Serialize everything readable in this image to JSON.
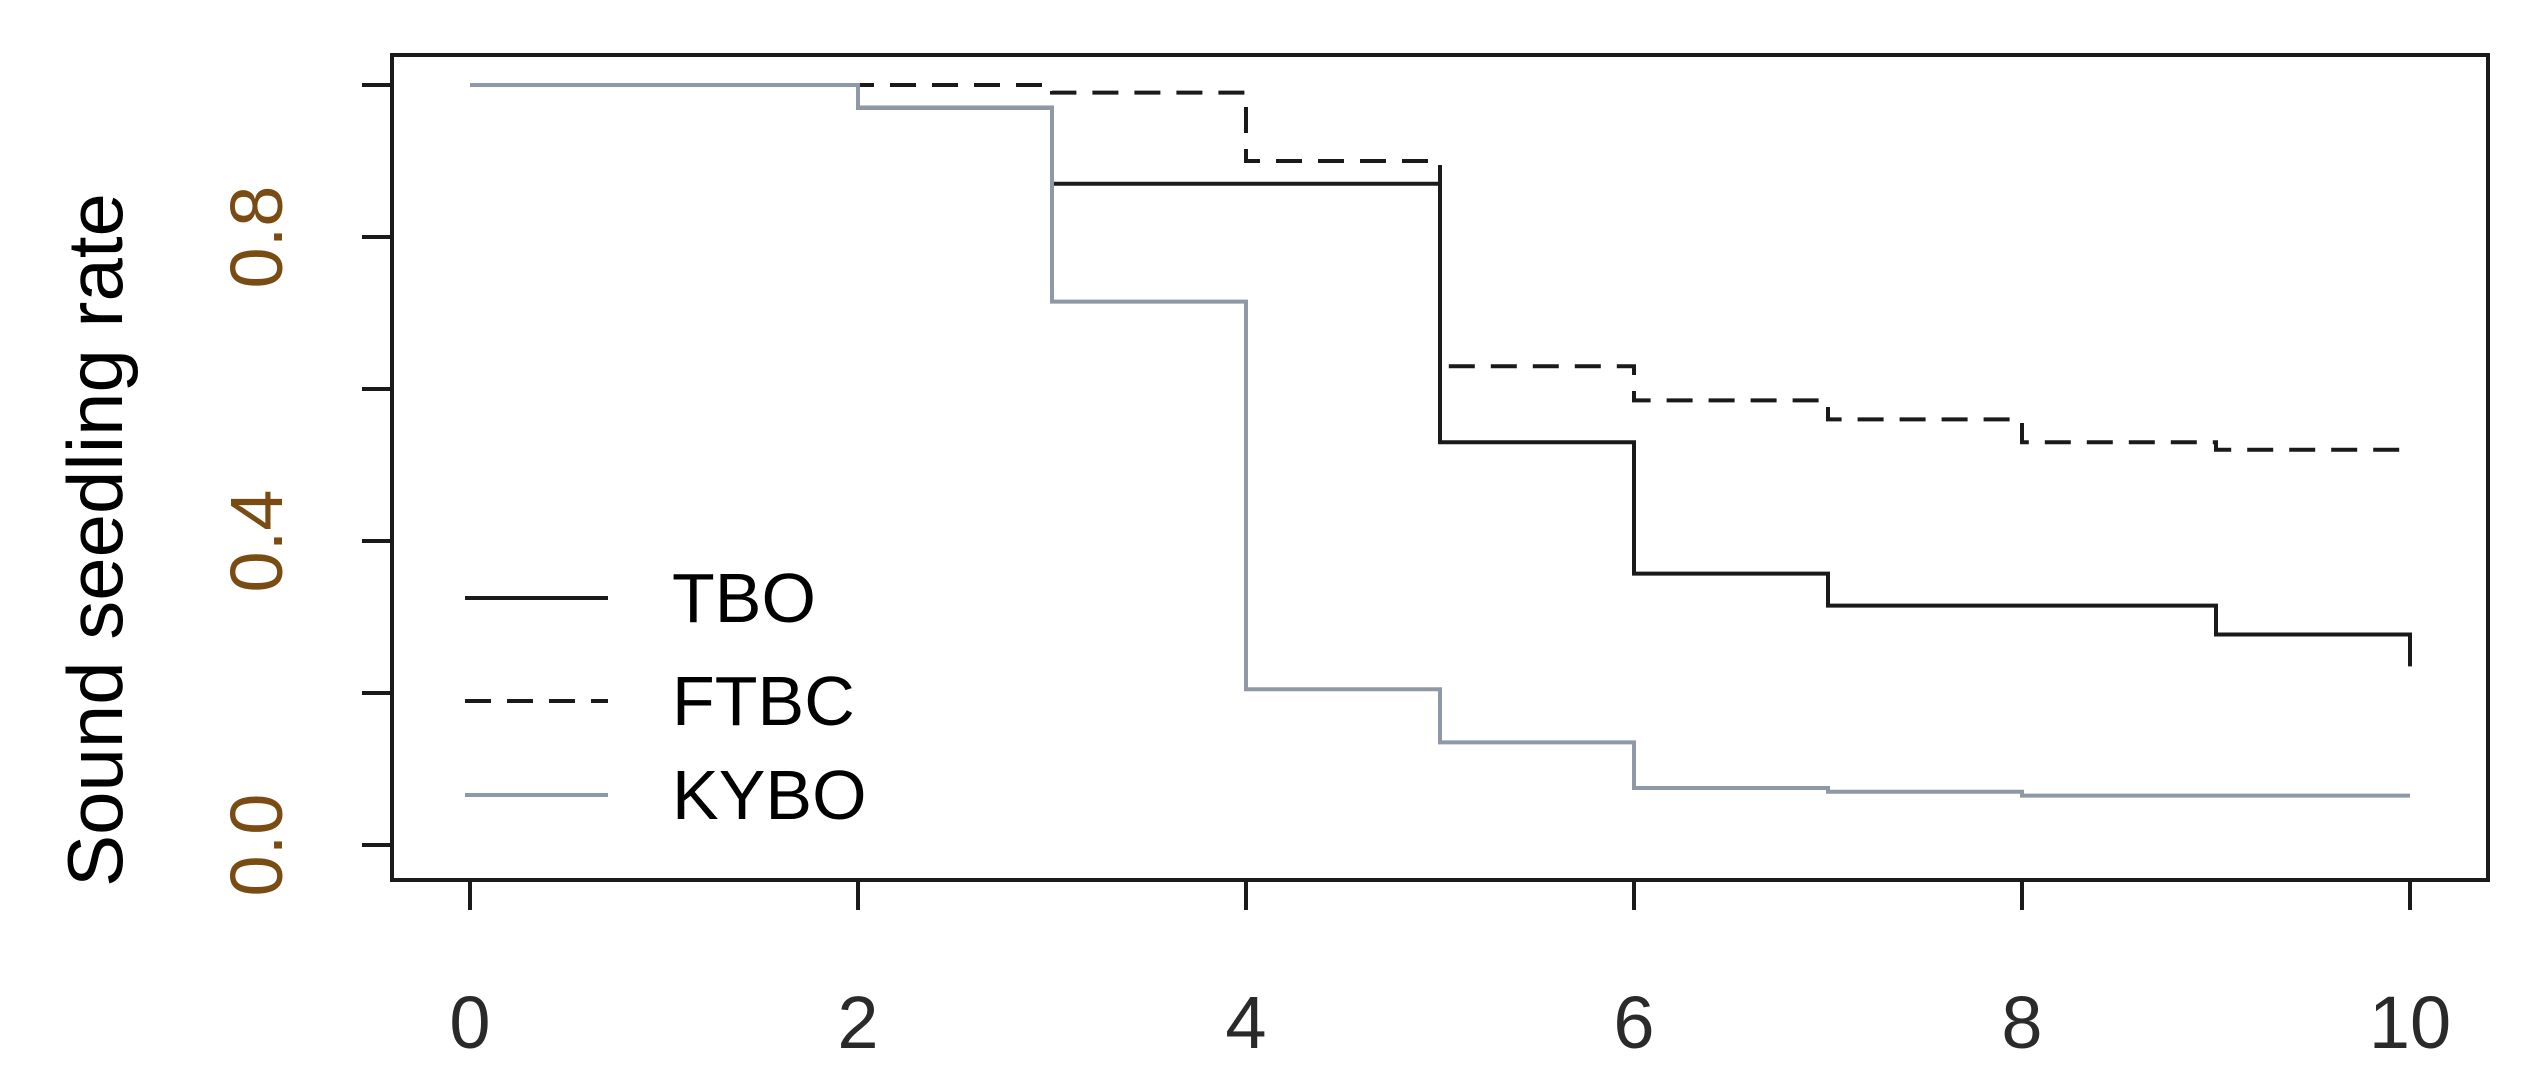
{
  "chart_data": {
    "type": "line",
    "step": true,
    "xlabel": "",
    "ylabel": "Sound seedling rate",
    "xlim": [
      0,
      10
    ],
    "ylim": [
      0,
      1
    ],
    "xticks": [
      "0",
      "2",
      "4",
      "6",
      "8",
      "10"
    ],
    "yticks": [
      "0.0",
      "0.4",
      "0.8"
    ],
    "minor_yticks": [
      0.2,
      0.6,
      1.0
    ],
    "legend_position": "bottom-left",
    "series": [
      {
        "name": "TBO",
        "style": "solid",
        "color": "#1a1a1a",
        "x": [
          0,
          2,
          3,
          5,
          6,
          7,
          9,
          10,
          10
        ],
        "y": [
          1.0,
          0.97,
          0.87,
          0.53,
          0.357,
          0.315,
          0.277,
          0.277,
          0.235
        ]
      },
      {
        "name": "FTBC",
        "style": "dashed",
        "color": "#1a1a1a",
        "x": [
          0,
          2,
          3,
          4,
          5,
          6,
          7,
          8,
          9,
          10
        ],
        "y": [
          1.0,
          1.0,
          0.99,
          0.9,
          0.63,
          0.585,
          0.56,
          0.53,
          0.52,
          0.52
        ]
      },
      {
        "name": "KYBO",
        "style": "solid",
        "color": "#8e98a6",
        "x": [
          0,
          2,
          3,
          4,
          5,
          6,
          7,
          8,
          10
        ],
        "y": [
          1.0,
          0.97,
          0.715,
          0.205,
          0.135,
          0.075,
          0.07,
          0.065,
          0.065
        ]
      }
    ],
    "colors": {
      "axis": "#1a1a1a",
      "tick_label": "#2a2a2a",
      "ytick_label": "#7a4b12"
    }
  }
}
